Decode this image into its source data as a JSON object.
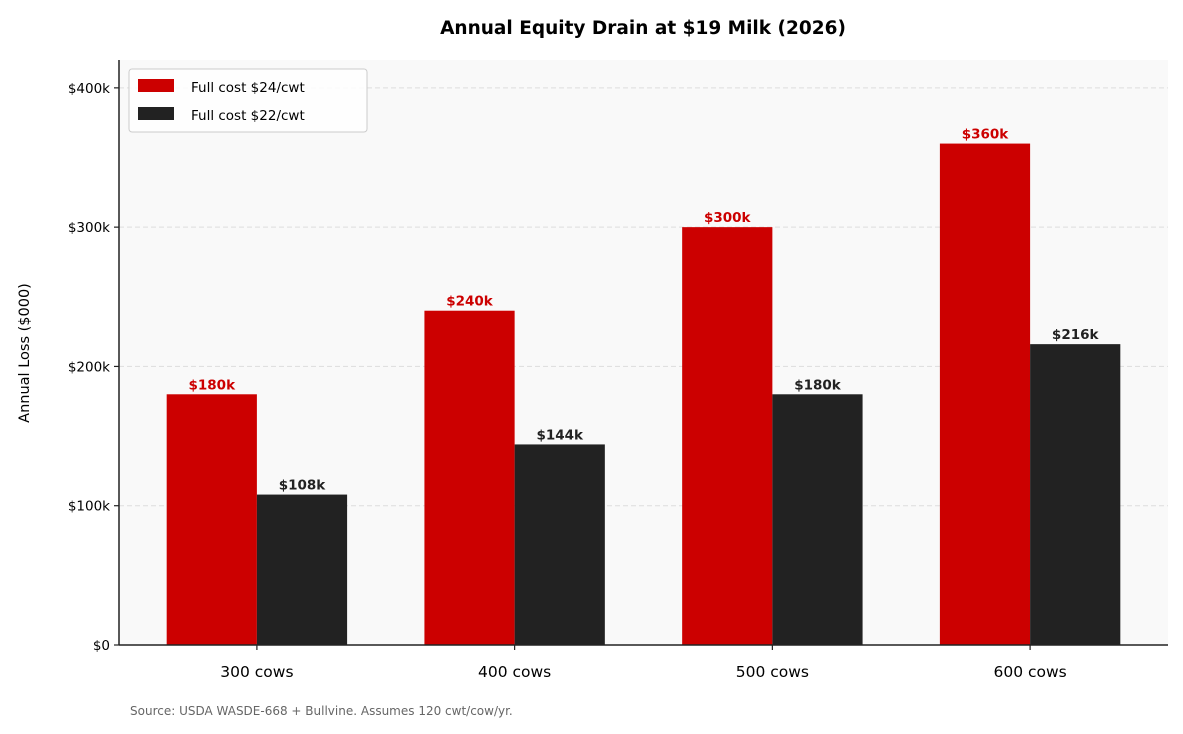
{
  "chart_data": {
    "type": "bar",
    "title": "Annual Equity Drain at $19 Milk (2026)",
    "xlabel": "",
    "ylabel": "Annual Loss ($000)",
    "categories": [
      "300 cows",
      "400 cows",
      "500 cows",
      "600 cows"
    ],
    "series": [
      {
        "name": "Full cost $24/cwt",
        "color": "#cc0000",
        "values": [
          180,
          240,
          300,
          360
        ],
        "labels": [
          "$180k",
          "$240k",
          "$300k",
          "$360k"
        ]
      },
      {
        "name": "Full cost $22/cwt",
        "color": "#222222",
        "values": [
          108,
          144,
          180,
          216
        ],
        "labels": [
          "$108k",
          "$144k",
          "$180k",
          "$216k"
        ]
      }
    ],
    "ylim": [
      0,
      420
    ],
    "yticks": [
      0,
      100,
      200,
      300,
      400
    ],
    "ytick_labels": [
      "$0",
      "$100k",
      "$200k",
      "$300k",
      "$400k"
    ],
    "grid": "y-dashed",
    "legend_position": "top-left",
    "source_note": "Source: USDA WASDE-668 + Bullvine. Assumes 120 cwt/cow/yr."
  }
}
